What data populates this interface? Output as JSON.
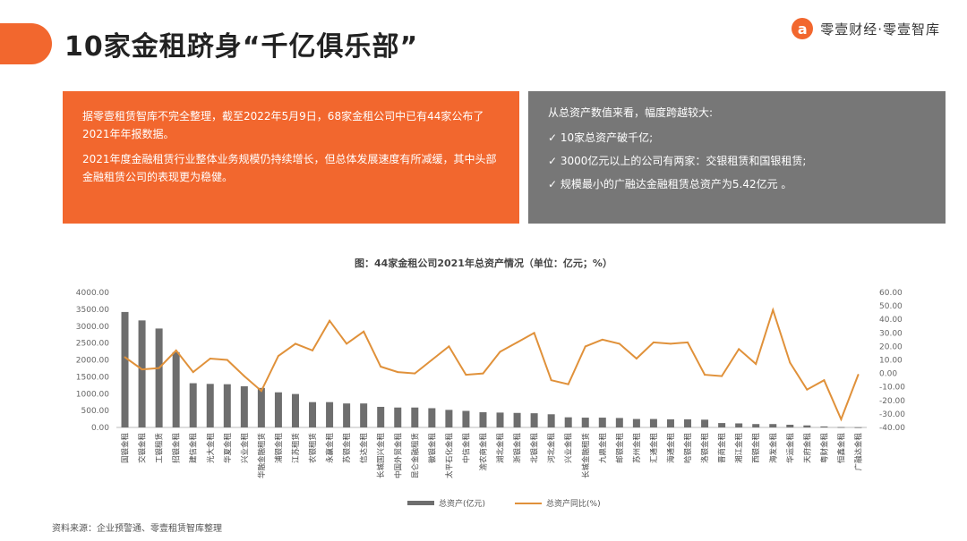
{
  "header": {
    "title": "10家金租跻身“千亿俱乐部”",
    "brand": "零壹财经·零壹智库",
    "logo_letter": "a"
  },
  "box_left": {
    "paragraphs": [
      "据零壹租赁智库不完全整理，截至2022年5月9日，68家金租公司中已有44家公布了2021年年报数据。",
      "2021年度金融租赁行业整体业务规模仍持续增长，但总体发展速度有所减缓，其中头部金融租赁公司的表现更为稳健。"
    ]
  },
  "box_right": {
    "intro": "从总资产数值来看，幅度跨越较大:",
    "items": [
      "✓ 10家总资产破千亿;",
      "✓ 3000亿元以上的公司有两家：交银租赁和国银租赁;",
      "✓ 规模最小的广融达金融租赁总资产为5.42亿元 。"
    ]
  },
  "colors": {
    "accent": "#f2672e",
    "grey_box": "#777777",
    "bar": "#6e6e6e",
    "line": "#e0913a"
  },
  "chart_data": {
    "type": "bar",
    "title": "图：44家金租公司2021年总资产情况（单位：亿元；%）",
    "categories": [
      "国银金租",
      "交银金租",
      "工银租赁",
      "招银金租",
      "建信金租",
      "光大金租",
      "华夏金租",
      "兴业金租",
      "华融金融租赁",
      "浦银金租",
      "江苏租赁",
      "农银租赁",
      "永赢金租",
      "苏银金租",
      "信达金租",
      "长城国兴金租",
      "中国外贸金租",
      "昆仑金融租赁",
      "徽银金租",
      "太平石化金租",
      "中信金租",
      "渝农商金租",
      "湖北金租",
      "浙银金租",
      "北银金租",
      "河北金租",
      "兴业金租",
      "长城金融租赁",
      "九鼎金租",
      "邮银金租",
      "苏州金租",
      "汇通金租",
      "海通金租",
      "哈银金租",
      "洛银金租",
      "晋商金租",
      "湘江金租",
      "西银金租",
      "海发金租",
      "华运金租",
      "天府金租",
      "粤财金租",
      "恒鑫金租",
      "广融达金租"
    ],
    "series": [
      {
        "name": "总资产(亿元)",
        "type": "bar",
        "axis": "left",
        "values": [
          3420,
          3170,
          2930,
          2230,
          1310,
          1290,
          1280,
          1220,
          1170,
          1040,
          990,
          750,
          750,
          710,
          710,
          610,
          590,
          590,
          570,
          520,
          490,
          450,
          440,
          430,
          420,
          390,
          300,
          290,
          290,
          280,
          250,
          250,
          240,
          240,
          230,
          130,
          120,
          100,
          100,
          80,
          60,
          30,
          10,
          5.42
        ]
      },
      {
        "name": "总资产同比(%)",
        "type": "line",
        "axis": "right",
        "values": [
          12,
          3,
          4,
          17,
          1,
          11,
          10,
          -2,
          -13,
          13,
          22,
          17,
          39,
          22,
          31,
          5,
          1,
          0,
          10,
          20,
          -1,
          0,
          16,
          23,
          30,
          -5,
          -8,
          20,
          25,
          22,
          11,
          23,
          22,
          23,
          -1,
          -2,
          18,
          7,
          47,
          8,
          -12,
          -5,
          -34,
          -1
        ]
      }
    ],
    "ylim_left": [
      0,
      4000
    ],
    "yticks_left": [
      "4000.00",
      "3500.00",
      "3000.00",
      "2500.00",
      "2000.00",
      "1500.00",
      "1000.00",
      "500.00",
      "0.00"
    ],
    "ylim_right": [
      -40,
      60
    ],
    "yticks_right": [
      "60.00",
      "50.00",
      "40.00",
      "30.00",
      "20.00",
      "10.00",
      "0.00",
      "-10.00",
      "-20.00",
      "-30.00",
      "-40.00"
    ],
    "grid": false,
    "legend_placement": "bottom",
    "legend": [
      "总资产(亿元)",
      "总资产同比(%)"
    ]
  },
  "source": "资料来源：企业预警通、零壹租赁智库整理"
}
